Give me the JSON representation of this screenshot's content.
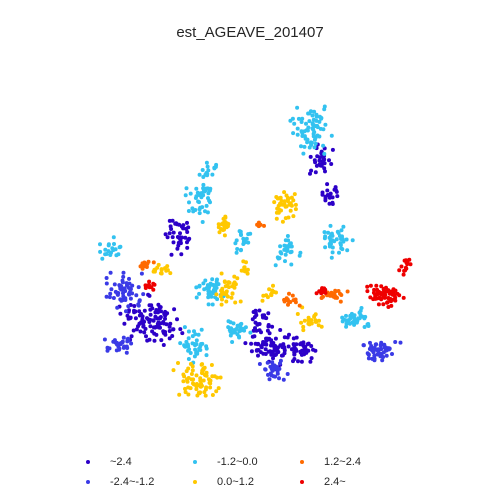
{
  "title": "est_AGEAVE_201407",
  "legend": [
    {
      "label": "~2.4",
      "color": "#2c00c8"
    },
    {
      "label": "-2.4~-1.2",
      "color": "#3a3ae6"
    },
    {
      "label": "-1.2~0.0",
      "color": "#33c2f0"
    },
    {
      "label": "0.0~1.2",
      "color": "#ffc800"
    },
    {
      "label": "1.2~2.4",
      "color": "#ff6a00"
    },
    {
      "label": "2.4~",
      "color": "#ee0000"
    }
  ]
}
